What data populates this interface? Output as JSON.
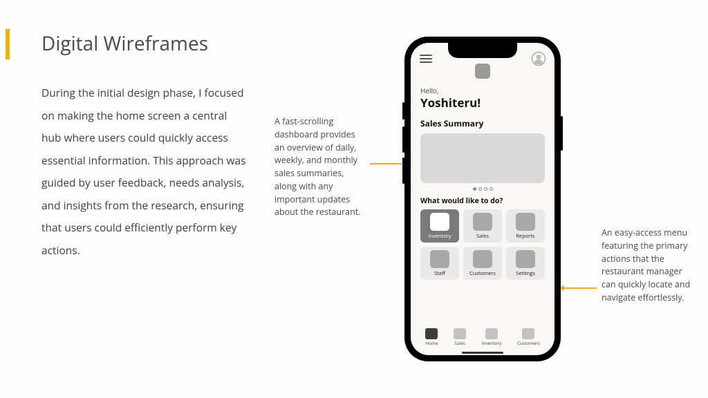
{
  "accent_color": "#f0b400",
  "title": "Digital Wireframes",
  "body": "During the initial design phase, I focused on making the home screen a central hub where users could quickly access essential information. This approach was guided by user feedback, needs analysis, and insights from the research, ensuring that users could efficiently perform key actions.",
  "annotations": {
    "left": "A fast-scrolling dashboard provides an overview of daily, weekly, and monthly sales summaries, along with any important updates about the restaurant.",
    "right": "An easy-access menu featuring the primary actions that the restaurant manager can quickly locate and navigate effortlessly."
  },
  "phone": {
    "greeting": "Hello,",
    "username": "Yoshiteru!",
    "section_sales": "Sales Summary",
    "prompt": "What would like to do?",
    "tiles": [
      {
        "label": "Inventory",
        "active": true
      },
      {
        "label": "Sales",
        "active": false
      },
      {
        "label": "Reports",
        "active": false
      },
      {
        "label": "Staff",
        "active": false
      },
      {
        "label": "Customers",
        "active": false
      },
      {
        "label": "Settings",
        "active": false
      }
    ],
    "nav": [
      {
        "label": "Home",
        "active": true
      },
      {
        "label": "Sales",
        "active": false
      },
      {
        "label": "Inventory",
        "active": false
      },
      {
        "label": "Customers",
        "active": false
      }
    ],
    "page_dots": 4,
    "active_dot": 0
  }
}
